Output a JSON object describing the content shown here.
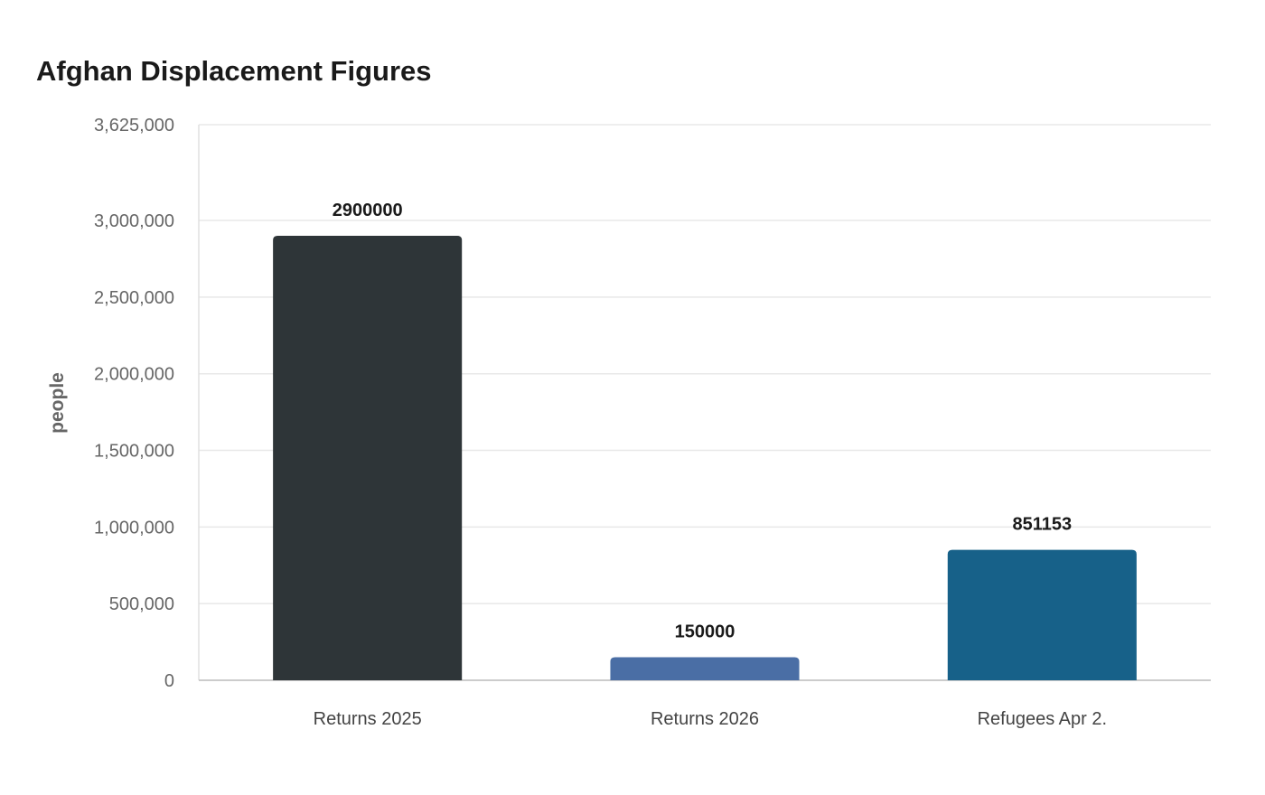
{
  "chart_data": {
    "type": "bar",
    "title": "Afghan Displacement Figures",
    "xlabel": "",
    "ylabel": "people",
    "categories": [
      "Returns 2025",
      "Returns 2026",
      "Refugees Apr 2."
    ],
    "values": [
      2900000,
      150000,
      851153
    ],
    "value_labels": [
      "2900000",
      "150000",
      "851153"
    ],
    "colors": [
      "#2e3538",
      "#4a6ea5",
      "#176189"
    ],
    "ylim": [
      0,
      3625000
    ],
    "yticks": [
      0,
      500000,
      1000000,
      1500000,
      2000000,
      2500000,
      3000000,
      3625000
    ],
    "ytick_labels": [
      "0",
      "500,000",
      "1,000,000",
      "1,500,000",
      "2,000,000",
      "2,500,000",
      "3,000,000",
      "3,625,000"
    ],
    "grid": true,
    "legend": "none"
  }
}
